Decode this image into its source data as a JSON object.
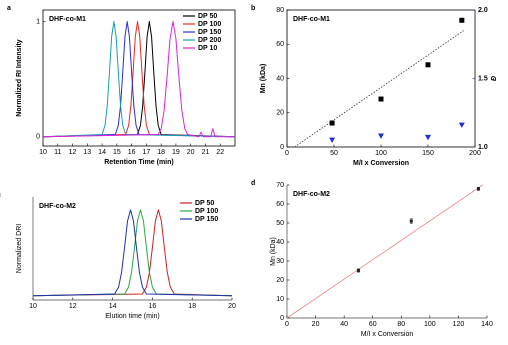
{
  "chart_data": [
    {
      "type": "line",
      "panel_label": "a",
      "title": "DHF-co-M1",
      "x_label": "Retention Time (min)",
      "y_label": "Normalized RI Intensity",
      "xlim": [
        10,
        23
      ],
      "xticks": [
        10,
        11,
        12,
        13,
        14,
        15,
        16,
        17,
        18,
        19,
        20,
        21,
        22
      ],
      "ylim": [
        -0.08,
        1.1
      ],
      "yticks": [
        0,
        1
      ],
      "legend": "upper right",
      "series": [
        {
          "name": "DP 50",
          "color": "#000000",
          "x": [
            10,
            16.4,
            16.6,
            16.75,
            16.9,
            17.05,
            17.2,
            17.35,
            17.5,
            17.65,
            17.8,
            18.0,
            23
          ],
          "values": [
            0,
            0.02,
            0.1,
            0.27,
            0.56,
            0.87,
            1,
            0.87,
            0.56,
            0.27,
            0.1,
            0.02,
            0
          ]
        },
        {
          "name": "DP 100",
          "color": "#e8291c",
          "x": [
            10,
            15.6,
            15.8,
            15.95,
            16.1,
            16.25,
            16.4,
            16.55,
            16.7,
            16.85,
            17.0,
            17.2,
            23
          ],
          "values": [
            0,
            0.02,
            0.1,
            0.27,
            0.56,
            0.87,
            1,
            0.87,
            0.56,
            0.27,
            0.1,
            0.02,
            0
          ]
        },
        {
          "name": "DP 150",
          "color": "#2b2bd8",
          "x": [
            10,
            14.9,
            15.1,
            15.25,
            15.4,
            15.55,
            15.7,
            15.85,
            16.0,
            16.15,
            16.3,
            16.5,
            23
          ],
          "values": [
            0,
            0.02,
            0.1,
            0.27,
            0.56,
            0.87,
            1,
            0.87,
            0.56,
            0.27,
            0.1,
            0.02,
            0
          ]
        },
        {
          "name": "DP 200",
          "color": "#17a2a2",
          "x": [
            10,
            14.0,
            14.2,
            14.35,
            14.5,
            14.65,
            14.8,
            14.95,
            15.1,
            15.25,
            15.4,
            15.6,
            23
          ],
          "values": [
            0,
            0.02,
            0.1,
            0.27,
            0.56,
            0.87,
            1,
            0.87,
            0.56,
            0.27,
            0.1,
            0.02,
            0
          ]
        },
        {
          "name": "DP 10",
          "color": "#e020e0",
          "x": [
            10,
            17.8,
            18.0,
            18.2,
            18.4,
            18.6,
            18.8,
            19.0,
            19.2,
            19.4,
            19.6,
            19.8,
            20.55,
            20.7,
            20.85,
            21.35,
            21.5,
            21.65,
            23
          ],
          "values": [
            0,
            0.02,
            0.07,
            0.23,
            0.52,
            0.85,
            1,
            0.85,
            0.52,
            0.23,
            0.07,
            0.02,
            0,
            0.04,
            0,
            0,
            0.07,
            0,
            0
          ]
        }
      ]
    },
    {
      "type": "scatter",
      "panel_label": "b",
      "title": "DHF-co-M1",
      "x_label": "M/I x Conversion",
      "y_label": "Mn (kDa)",
      "y2_label": "Đ",
      "xlim": [
        0,
        200
      ],
      "xticks": [
        0,
        50,
        100,
        150,
        200
      ],
      "ylim": [
        0,
        80
      ],
      "yticks": [
        0,
        20,
        40,
        60,
        80
      ],
      "y2lim": [
        1.0,
        2.0
      ],
      "y2ticks": [
        {
          "value": 1.0,
          "label": "1.0"
        },
        1.5,
        {
          "value": 2.0,
          "label": "2.0"
        }
      ],
      "y2_color": "#1f2fd0",
      "x": [
        48,
        100,
        150,
        186
      ],
      "trend": {
        "color": "#333333",
        "x": [
          8,
          188
        ],
        "values": [
          0,
          68
        ]
      },
      "series": [
        {
          "color": "#000000",
          "marker": "square",
          "values": [
            14,
            28,
            48,
            74
          ]
        },
        {
          "color": "#1f2fd0",
          "marker": "triangle-down",
          "axis": "y2",
          "values": [
            1.05,
            1.08,
            1.07,
            1.16
          ]
        }
      ]
    },
    {
      "type": "line",
      "panel_label": "c",
      "title": "DHF-co-M2",
      "x_label": "Elution time (min)",
      "y_label": "Normalized DRI",
      "xlim": [
        10,
        20
      ],
      "xticks": [
        10,
        12,
        14,
        16,
        18,
        20
      ],
      "ylim": [
        -0.05,
        1.15
      ],
      "legend": "upper right",
      "series": [
        {
          "name": "DP 50",
          "color": "#d02020",
          "x": [
            10,
            15.5,
            15.7,
            15.85,
            16.0,
            16.15,
            16.3,
            16.45,
            16.6,
            16.75,
            16.9,
            17.1,
            20
          ],
          "values": [
            0,
            0.02,
            0.1,
            0.27,
            0.56,
            0.87,
            1,
            0.87,
            0.56,
            0.27,
            0.1,
            0.02,
            0
          ]
        },
        {
          "name": "DP 100",
          "color": "#2aa84a",
          "x": [
            10,
            14.6,
            14.8,
            14.95,
            15.1,
            15.25,
            15.4,
            15.55,
            15.7,
            15.85,
            16.0,
            16.2,
            20
          ],
          "values": [
            0,
            0.02,
            0.1,
            0.27,
            0.56,
            0.87,
            1,
            0.87,
            0.56,
            0.27,
            0.1,
            0.02,
            0
          ]
        },
        {
          "name": "DP 150",
          "color": "#2030b0",
          "x": [
            10,
            14.1,
            14.3,
            14.45,
            14.6,
            14.75,
            14.9,
            15.05,
            15.2,
            15.35,
            15.5,
            15.7,
            20
          ],
          "values": [
            0,
            0.02,
            0.1,
            0.27,
            0.56,
            0.87,
            1,
            0.87,
            0.56,
            0.27,
            0.1,
            0.02,
            0
          ]
        }
      ]
    },
    {
      "type": "scatter",
      "panel_label": "d",
      "title": "DHF-co-M2",
      "x_label": "M/I x Conversion",
      "y_label": "Mn (kDa)",
      "xlim": [
        0,
        140
      ],
      "xticks": [
        0,
        20,
        40,
        60,
        80,
        100,
        120,
        140
      ],
      "ylim": [
        0,
        70
      ],
      "yticks": [
        0,
        10,
        20,
        30,
        40,
        50,
        60,
        70
      ],
      "x": [
        50,
        87,
        134
      ],
      "trend": {
        "color": "#e88a8a",
        "x": [
          0,
          137
        ],
        "values": [
          0,
          70
        ]
      },
      "series": [
        {
          "color": "#222222",
          "marker": "dot",
          "values": [
            25,
            51,
            68
          ],
          "errors": [
            0.8,
            1.2,
            0.8
          ]
        }
      ]
    }
  ]
}
